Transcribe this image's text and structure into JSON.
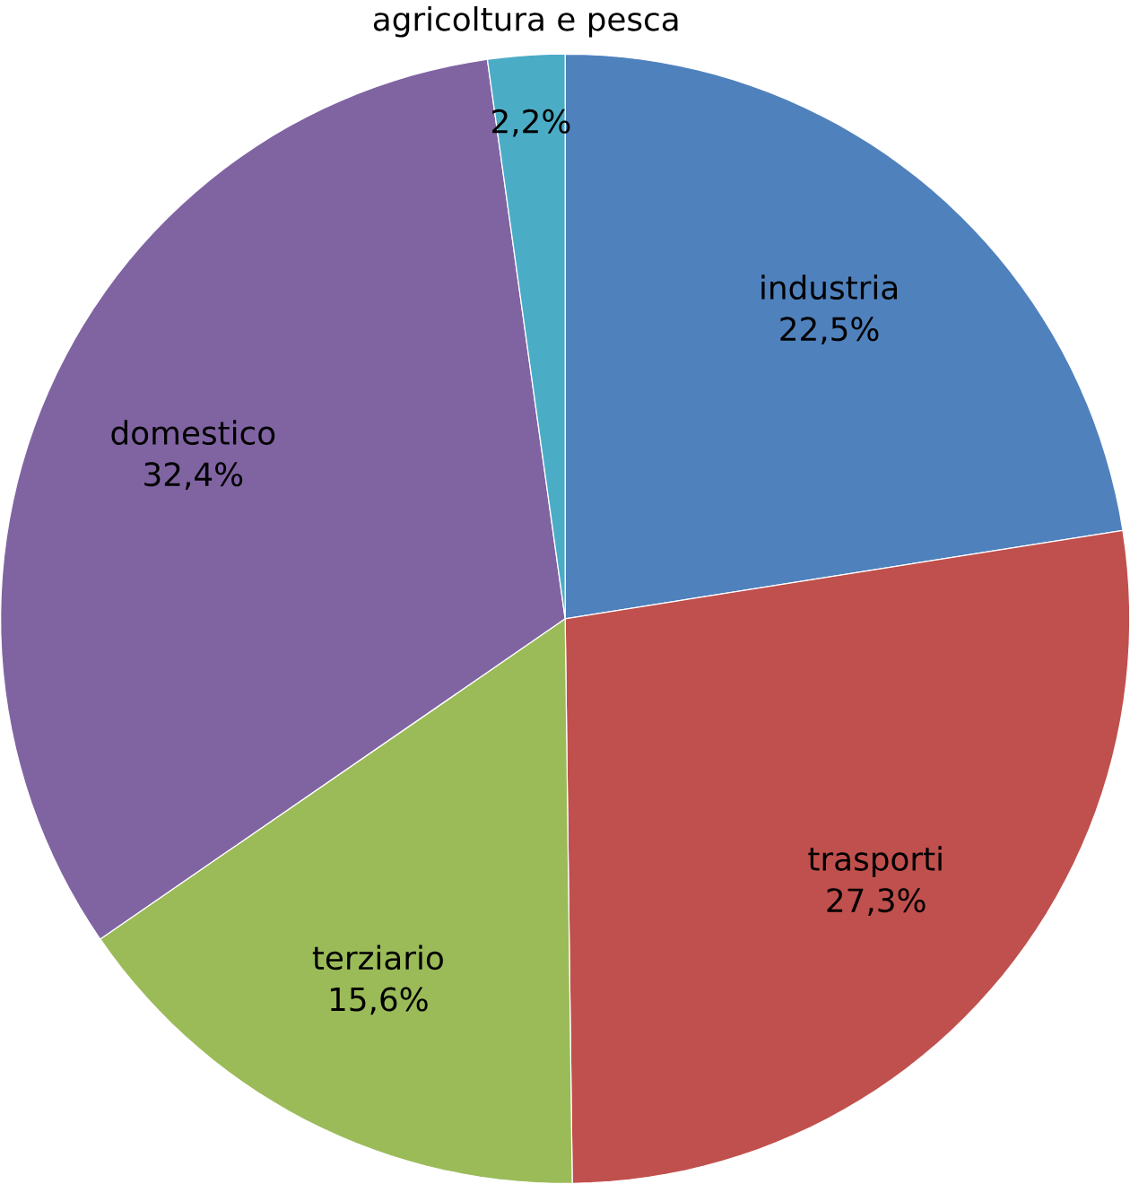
{
  "chart_data": {
    "type": "pie",
    "categories": [
      "industria",
      "trasporti",
      "terziario",
      "domestico",
      "agricoltura e pesca"
    ],
    "values": [
      22.5,
      27.3,
      15.6,
      32.4,
      2.2
    ],
    "value_labels": [
      "22,5%",
      "27,3%",
      "15,6%",
      "32,4%",
      "2,2%"
    ],
    "colors": [
      "#4f81bd",
      "#c0504d",
      "#9bbb59",
      "#8064a2",
      "#4bacc6"
    ]
  }
}
